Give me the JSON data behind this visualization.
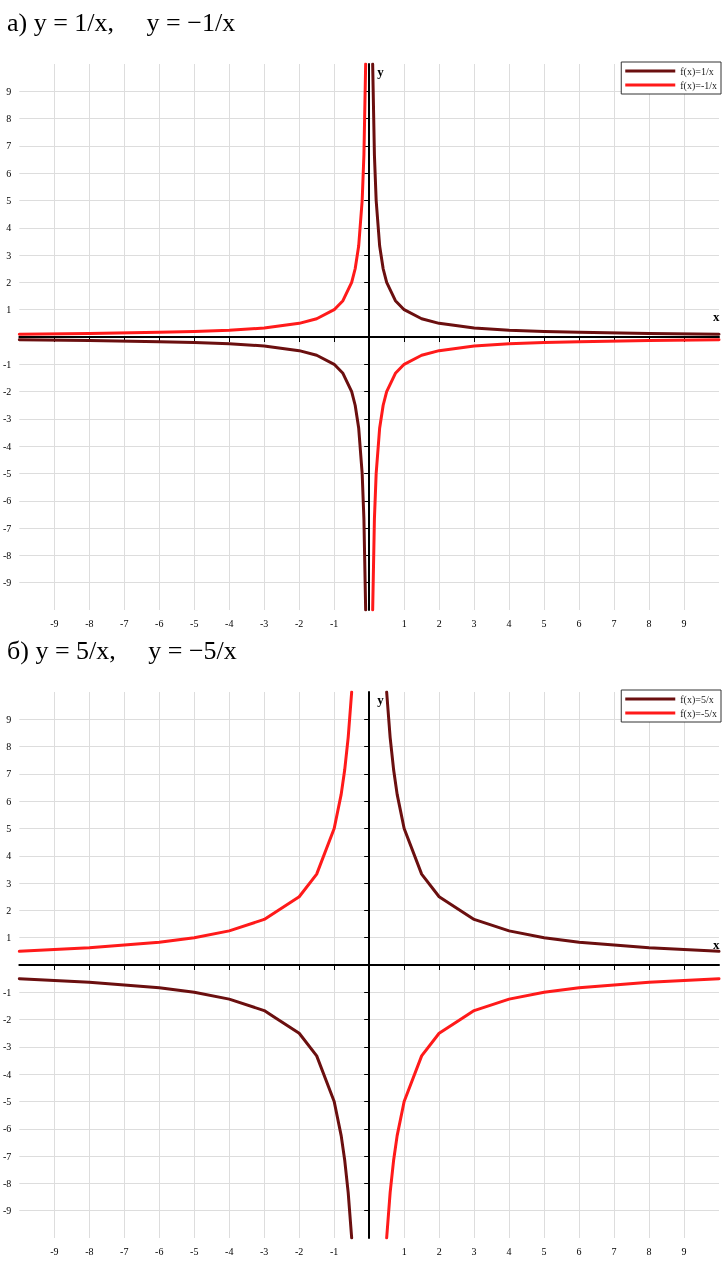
{
  "chart_data": [
    {
      "type": "line",
      "title": "а) y = 1/x,     y = −1/x",
      "xlabel": "x",
      "ylabel": "y",
      "xlim": [
        -10,
        10
      ],
      "ylim": [
        -10,
        10
      ],
      "xticks": [
        -9,
        -8,
        -7,
        -6,
        -5,
        -4,
        -3,
        -2,
        -1,
        1,
        2,
        3,
        4,
        5,
        6,
        7,
        8,
        9
      ],
      "yticks": [
        -9,
        -8,
        -7,
        -6,
        -5,
        -4,
        -3,
        -2,
        -1,
        1,
        2,
        3,
        4,
        5,
        6,
        7,
        8,
        9
      ],
      "grid": true,
      "legend": "top right",
      "marker": "none",
      "line_style": "solid",
      "series": [
        {
          "name": "f(x)=1/x",
          "color": "#6b0f0f",
          "x": [
            -10,
            -8,
            -6,
            -5,
            -4,
            -3,
            -2,
            -1.5,
            -1,
            -0.75,
            -0.5,
            -0.4,
            -0.3,
            -0.2,
            -0.15,
            -0.1,
            0,
            0.1,
            0.15,
            0.2,
            0.3,
            0.4,
            0.5,
            0.75,
            1,
            1.5,
            2,
            3,
            4,
            5,
            6,
            8,
            10
          ],
          "values": [
            -0.1,
            -0.13,
            -0.17,
            -0.2,
            -0.25,
            -0.33,
            -0.5,
            -0.67,
            -1,
            -1.33,
            -2,
            -2.5,
            -3.33,
            -5,
            -6.67,
            -10,
            null,
            10,
            6.67,
            5,
            3.33,
            2.5,
            2,
            1.33,
            1,
            0.67,
            0.5,
            0.33,
            0.25,
            0.2,
            0.17,
            0.13,
            0.1
          ]
        },
        {
          "name": "f(x)=-1/x",
          "color": "#ff1a1a",
          "x": [
            -10,
            -8,
            -6,
            -5,
            -4,
            -3,
            -2,
            -1.5,
            -1,
            -0.75,
            -0.5,
            -0.4,
            -0.3,
            -0.2,
            -0.15,
            -0.1,
            0,
            0.1,
            0.15,
            0.2,
            0.3,
            0.4,
            0.5,
            0.75,
            1,
            1.5,
            2,
            3,
            4,
            5,
            6,
            8,
            10
          ],
          "values": [
            0.1,
            0.13,
            0.17,
            0.2,
            0.25,
            0.33,
            0.5,
            0.67,
            1,
            1.33,
            2,
            2.5,
            3.33,
            5,
            6.67,
            10,
            null,
            -10,
            -6.67,
            -5,
            -3.33,
            -2.5,
            -2,
            -1.33,
            -1,
            -0.67,
            -0.5,
            -0.33,
            -0.25,
            -0.2,
            -0.17,
            -0.13,
            -0.1
          ]
        }
      ]
    },
    {
      "type": "line",
      "title": "б) y = 5/x,     y = −5/x",
      "xlabel": "x",
      "ylabel": "y",
      "xlim": [
        -10,
        10
      ],
      "ylim": [
        -10,
        10
      ],
      "xticks": [
        -9,
        -8,
        -7,
        -6,
        -5,
        -4,
        -3,
        -2,
        -1,
        1,
        2,
        3,
        4,
        5,
        6,
        7,
        8,
        9
      ],
      "yticks": [
        -9,
        -8,
        -7,
        -6,
        -5,
        -4,
        -3,
        -2,
        -1,
        1,
        2,
        3,
        4,
        5,
        6,
        7,
        8,
        9
      ],
      "grid": true,
      "legend": "top right",
      "marker": "none",
      "line_style": "solid",
      "series": [
        {
          "name": "f(x)=5/x",
          "color": "#6b0f0f",
          "x": [
            -10,
            -8,
            -6,
            -5,
            -4,
            -3,
            -2,
            -1.5,
            -1,
            -0.8,
            -0.7,
            -0.6,
            -0.5,
            0,
            0.5,
            0.6,
            0.7,
            0.8,
            1,
            1.5,
            2,
            3,
            4,
            5,
            6,
            8,
            10
          ],
          "values": [
            -0.5,
            -0.63,
            -0.83,
            -1,
            -1.25,
            -1.67,
            -2.5,
            -3.33,
            -5,
            -6.25,
            -7.14,
            -8.33,
            -10,
            null,
            10,
            8.33,
            7.14,
            6.25,
            5,
            3.33,
            2.5,
            1.67,
            1.25,
            1,
            0.83,
            0.63,
            0.5
          ]
        },
        {
          "name": "f(x)=-5/x",
          "color": "#ff1a1a",
          "x": [
            -10,
            -8,
            -6,
            -5,
            -4,
            -3,
            -2,
            -1.5,
            -1,
            -0.8,
            -0.7,
            -0.6,
            -0.5,
            0,
            0.5,
            0.6,
            0.7,
            0.8,
            1,
            1.5,
            2,
            3,
            4,
            5,
            6,
            8,
            10
          ],
          "values": [
            0.5,
            0.63,
            0.83,
            1,
            1.25,
            1.67,
            2.5,
            3.33,
            5,
            6.25,
            7.14,
            8.33,
            10,
            null,
            -10,
            -8.33,
            -7.14,
            -6.25,
            -5,
            -3.33,
            -2.5,
            -1.67,
            -1.25,
            -1,
            -0.83,
            -0.63,
            -0.5
          ]
        }
      ]
    }
  ]
}
